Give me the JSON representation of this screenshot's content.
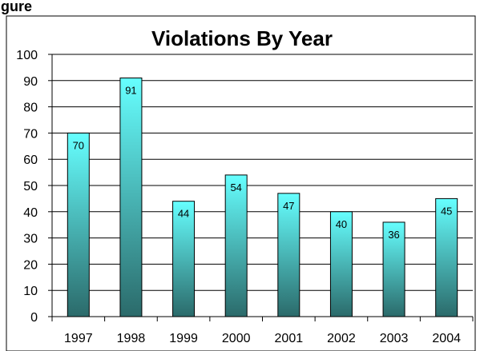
{
  "header_fragment": "igure",
  "chart_data": {
    "type": "bar",
    "title": "Violations By Year",
    "xlabel": "",
    "ylabel": "",
    "categories": [
      "1997",
      "1998",
      "1999",
      "2000",
      "2001",
      "2002",
      "2003",
      "2004"
    ],
    "values": [
      70,
      91,
      44,
      54,
      47,
      40,
      36,
      45
    ],
    "ylim": [
      0,
      100
    ],
    "yticks": [
      0,
      10,
      20,
      30,
      40,
      50,
      60,
      70,
      80,
      90,
      100
    ],
    "grid": true,
    "legend": "none",
    "bar_color_top": "#66ffff",
    "bar_color_bottom": "#2b6a6a",
    "axis_color": "#000000"
  }
}
